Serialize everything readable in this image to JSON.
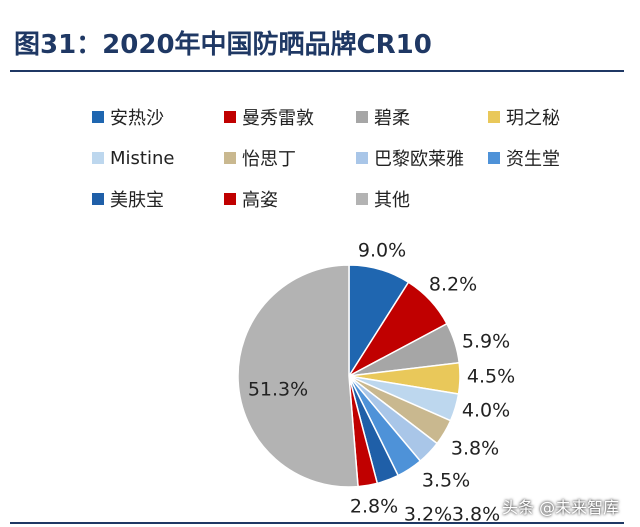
{
  "figure": {
    "title": "图31：2020年中国防晒品牌CR10",
    "watermark": "头条 @未来智库"
  },
  "chart_data": {
    "type": "pie",
    "title": "图31：2020年中国防晒品牌CR10",
    "legend_position": "top",
    "series": [
      {
        "name": "安热沙",
        "value": 9.0,
        "label": "9.0%",
        "color": "#1f66b0"
      },
      {
        "name": "曼秀雷敦",
        "value": 8.2,
        "label": "8.2%",
        "color": "#c00000"
      },
      {
        "name": "碧柔",
        "value": 5.9,
        "label": "5.9%",
        "color": "#a6a6a6"
      },
      {
        "name": "玥之秘",
        "value": 4.5,
        "label": "4.5%",
        "color": "#e9c85a"
      },
      {
        "name": "Mistine",
        "value": 4.0,
        "label": "4.0%",
        "color": "#bdd7ee"
      },
      {
        "name": "怡思丁",
        "value": 3.8,
        "label": "3.8%",
        "color": "#c9b88f"
      },
      {
        "name": "巴黎欧莱雅",
        "value": 3.5,
        "label": "3.5%",
        "color": "#a9c6e8"
      },
      {
        "name": "资生堂",
        "value": 3.8,
        "label": "3.8%",
        "color": "#4e92d8"
      },
      {
        "name": "美肤宝",
        "value": 3.2,
        "label": "3.2%",
        "color": "#1f5fa8"
      },
      {
        "name": "高姿",
        "value": 2.8,
        "label": "2.8%",
        "color": "#c00000"
      },
      {
        "name": "其他",
        "value": 51.3,
        "label": "51.3%",
        "color": "#b3b3b3"
      }
    ]
  }
}
